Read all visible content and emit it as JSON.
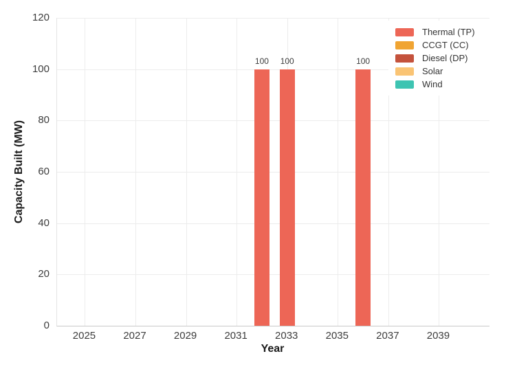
{
  "chart_data": {
    "type": "bar",
    "title": "",
    "xlabel": "Year",
    "ylabel": "Capacity Built (MW)",
    "x_ticks": [
      2025,
      2027,
      2029,
      2031,
      2033,
      2035,
      2037,
      2039
    ],
    "x_range": [
      2023.9,
      2041.0
    ],
    "y_ticks": [
      0,
      20,
      40,
      60,
      80,
      100,
      120
    ],
    "ylim": [
      0,
      120
    ],
    "grid": true,
    "legend_position": "top-right",
    "bar_value_labels": true,
    "series": [
      {
        "name": "Thermal (TP)",
        "color": "#ED6656",
        "points": [
          {
            "x": 2032,
            "y": 100,
            "label": "100"
          },
          {
            "x": 2033,
            "y": 100,
            "label": "100"
          },
          {
            "x": 2036,
            "y": 100,
            "label": "100"
          }
        ]
      },
      {
        "name": "CCGT (CC)",
        "color": "#F0A432",
        "points": []
      },
      {
        "name": "Diesel (DP)",
        "color": "#C4523C",
        "points": []
      },
      {
        "name": "Solar",
        "color": "#FAC474",
        "points": []
      },
      {
        "name": "Wind",
        "color": "#3EC4B2",
        "points": []
      }
    ]
  },
  "colors": {
    "grid": "#ececec",
    "x_axis_line": "#c9c9c9",
    "y_axis_line": "#e4e4e4",
    "tick_text": "#3c3c3c",
    "title_text": "#1a1a1a",
    "legend_text": "#333333",
    "background": "#ffffff"
  }
}
